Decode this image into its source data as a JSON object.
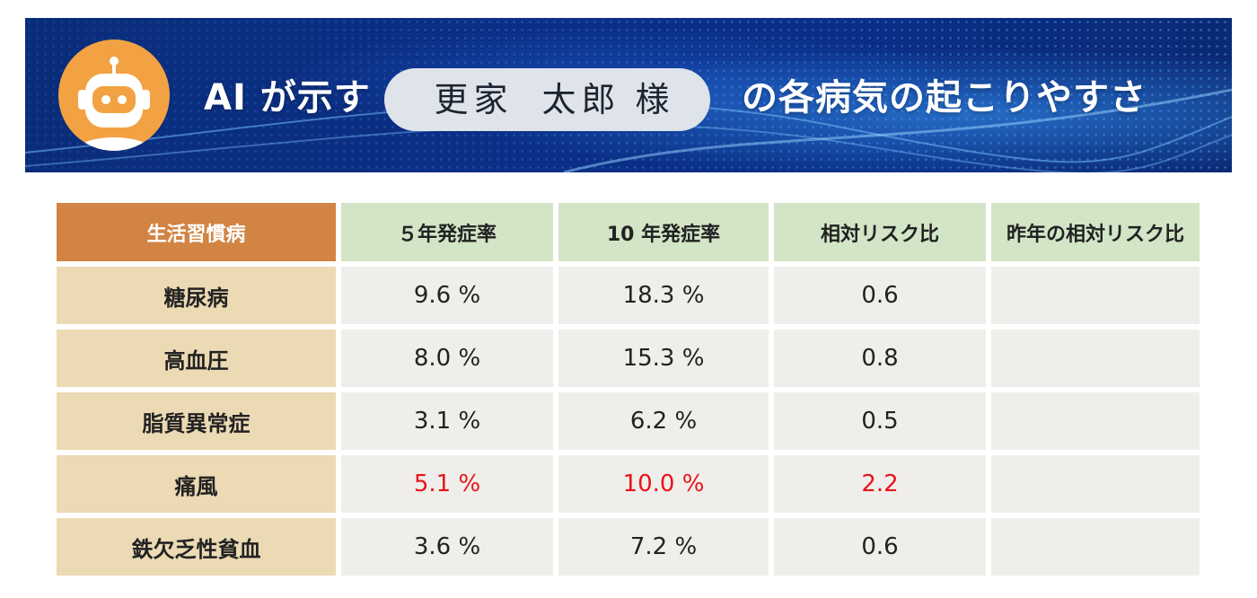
{
  "banner": {
    "title_prefix": "AI が示す",
    "name_family": "更家",
    "name_given": "太郎",
    "honorific": "様",
    "title_suffix": "の各病気の起こりやすさ",
    "colors": {
      "banner_bg": "#0b2f86",
      "avatar_bg": "#f2a242"
    },
    "icons": [
      "robot-icon"
    ]
  },
  "table": {
    "headers": [
      "生活習慣病",
      "５年発症率",
      "10 年発症率",
      "相対リスク比",
      "昨年の相対リスク比"
    ],
    "rows": [
      {
        "disease": "糖尿病",
        "rate5": "9.6 %",
        "rate10": "18.3 %",
        "rr": "0.6",
        "rr_last": ""
      },
      {
        "disease": "高血圧",
        "rate5": "8.0 %",
        "rate10": "15.3 %",
        "rr": "0.8",
        "rr_last": ""
      },
      {
        "disease": "脂質異常症",
        "rate5": "3.1 %",
        "rate10": "6.2 %",
        "rr": "0.5",
        "rr_last": ""
      },
      {
        "disease": "痛風",
        "rate5": "5.1 %",
        "rate10": "10.0 %",
        "rr": "2.2",
        "rr_last": ""
      },
      {
        "disease": "鉄欠乏性貧血",
        "rate5": "3.6 %",
        "rate10": "7.2 %",
        "rr": "0.6",
        "rr_last": ""
      }
    ],
    "highlight_row": "痛風",
    "colors": {
      "header_first": "#d28444",
      "header_other": "#d2e5c6",
      "row_label": "#ecdab4",
      "cell": "#efeeea",
      "highlight_text": "#e8141a"
    }
  }
}
